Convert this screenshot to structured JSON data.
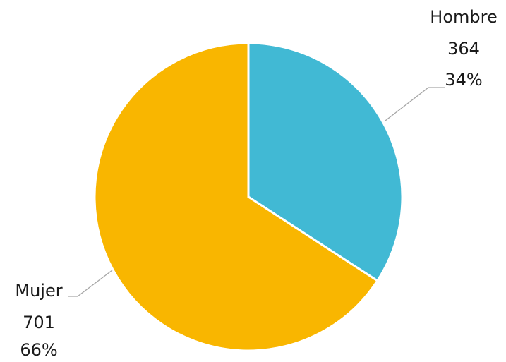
{
  "chart_data": {
    "type": "pie",
    "categories": [
      "Hombre",
      "Mujer"
    ],
    "values": [
      364,
      701
    ],
    "percent_labels": [
      "34%",
      "66%"
    ],
    "colors": [
      "#41b9d4",
      "#f9b600"
    ],
    "start_angle": "12 o'clock",
    "direction": "clockwise",
    "legend": "none",
    "data_labels": "outside with leader lines"
  }
}
